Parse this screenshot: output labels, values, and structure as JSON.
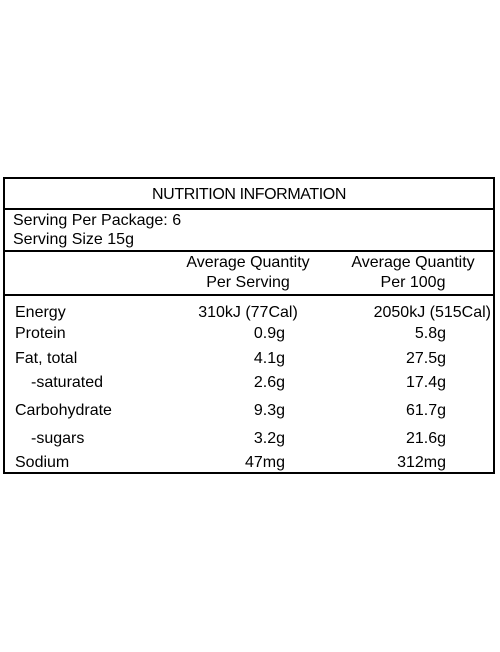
{
  "panel": {
    "title": "NUTRITION INFORMATION",
    "serving_per_package": "Serving Per Package: 6",
    "serving_size": "Serving Size 15g",
    "headers": {
      "per_serving_line1": "Average Quantity",
      "per_serving_line2": "Per Serving",
      "per_100g_line1": "Average Quantity",
      "per_100g_line2": "Per 100g"
    },
    "rows": [
      {
        "label": "Energy",
        "per_serving": "310kJ (77Cal)",
        "per_100g": "2050kJ (515Cal)"
      },
      {
        "label": "Protein",
        "per_serving": "0.9g",
        "per_100g": "5.8g"
      },
      {
        "label": "Fat, total",
        "per_serving": "4.1g",
        "per_100g": "27.5g"
      },
      {
        "label": "-saturated",
        "per_serving": "2.6g",
        "per_100g": "17.4g"
      },
      {
        "label": "Carbohydrate",
        "per_serving": "9.3g",
        "per_100g": "61.7g"
      },
      {
        "label": "-sugars",
        "per_serving": "3.2g",
        "per_100g": "21.6g"
      },
      {
        "label": "Sodium",
        "per_serving": "47mg",
        "per_100g": "312mg"
      }
    ]
  }
}
